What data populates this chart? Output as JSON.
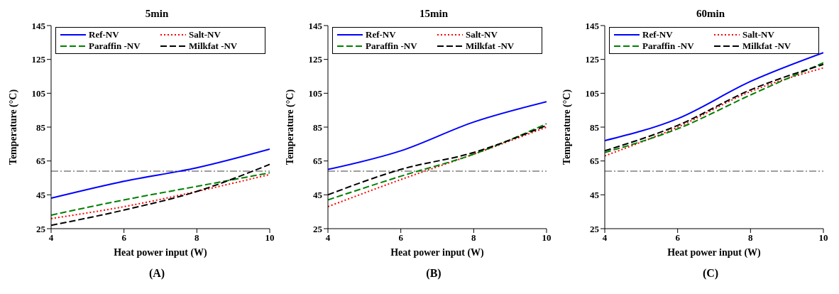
{
  "chart_data": [
    {
      "type": "line",
      "title": "5min",
      "xlabel": "Heat power input (W)",
      "ylabel": "Temperature (°C)",
      "annotations": [
        "(A)"
      ],
      "x": [
        4,
        6,
        8,
        10
      ],
      "xlim": [
        4,
        10
      ],
      "xticks": [
        4,
        6,
        8,
        10
      ],
      "ylim": [
        25,
        145
      ],
      "yticks": [
        25,
        45,
        65,
        85,
        105,
        125,
        145
      ],
      "grid": false,
      "legend": "top",
      "ref_lines": [
        {
          "axis": "y",
          "value": 59,
          "color": "#808080",
          "line_style": "dashed"
        }
      ],
      "series": [
        {
          "name": "Ref-NV",
          "color": "#0000ff",
          "line_style": "solid",
          "values": [
            43,
            53,
            61,
            72
          ]
        },
        {
          "name": "Salt-NV",
          "color": "#ff0000",
          "line_style": "dotted",
          "values": [
            31,
            38,
            47,
            57
          ]
        },
        {
          "name": "Paraffin -NV",
          "color": "#008000",
          "line_style": "dashed",
          "values": [
            33,
            42,
            50,
            58
          ]
        },
        {
          "name": "Milkfat -NV",
          "color": "#000000",
          "line_style": "dashed",
          "values": [
            27,
            36,
            47,
            63
          ]
        }
      ]
    },
    {
      "type": "line",
      "title": "15min",
      "xlabel": "Heat power input (W)",
      "ylabel": "Temperature (°C)",
      "annotations": [
        "(B)"
      ],
      "x": [
        4,
        6,
        8,
        10
      ],
      "xlim": [
        4,
        10
      ],
      "xticks": [
        4,
        6,
        8,
        10
      ],
      "ylim": [
        25,
        145
      ],
      "yticks": [
        25,
        45,
        65,
        85,
        105,
        125,
        145
      ],
      "grid": false,
      "legend": "top",
      "ref_lines": [
        {
          "axis": "y",
          "value": 59,
          "color": "#808080",
          "line_style": "dashed"
        }
      ],
      "series": [
        {
          "name": "Ref-NV",
          "color": "#0000ff",
          "line_style": "solid",
          "values": [
            60,
            71,
            88,
            100
          ]
        },
        {
          "name": "Salt-NV",
          "color": "#ff0000",
          "line_style": "dotted",
          "values": [
            38,
            54,
            69,
            85
          ]
        },
        {
          "name": "Paraffin -NV",
          "color": "#008000",
          "line_style": "dashed",
          "values": [
            42,
            56,
            69,
            87
          ]
        },
        {
          "name": "Milkfat -NV",
          "color": "#000000",
          "line_style": "dashed",
          "values": [
            45,
            60,
            70,
            86
          ]
        }
      ]
    },
    {
      "type": "line",
      "title": "60min",
      "xlabel": "Heat power input (W)",
      "ylabel": "Temperature (°C)",
      "annotations": [
        "(C)"
      ],
      "x": [
        4,
        6,
        8,
        10
      ],
      "xlim": [
        4,
        10
      ],
      "xticks": [
        4,
        6,
        8,
        10
      ],
      "ylim": [
        25,
        145
      ],
      "yticks": [
        25,
        45,
        65,
        85,
        105,
        125,
        145
      ],
      "grid": false,
      "legend": "top",
      "ref_lines": [
        {
          "axis": "y",
          "value": 59,
          "color": "#808080",
          "line_style": "dashed"
        }
      ],
      "series": [
        {
          "name": "Ref-NV",
          "color": "#0000ff",
          "line_style": "solid",
          "values": [
            77,
            90,
            112,
            129
          ]
        },
        {
          "name": "Salt-NV",
          "color": "#ff0000",
          "line_style": "dotted",
          "values": [
            68,
            85,
            106,
            120
          ]
        },
        {
          "name": "Paraffin -NV",
          "color": "#008000",
          "line_style": "dashed",
          "values": [
            70,
            84,
            104,
            123
          ]
        },
        {
          "name": "Milkfat -NV",
          "color": "#000000",
          "line_style": "dashed",
          "values": [
            71,
            86,
            107,
            122
          ]
        }
      ]
    }
  ]
}
